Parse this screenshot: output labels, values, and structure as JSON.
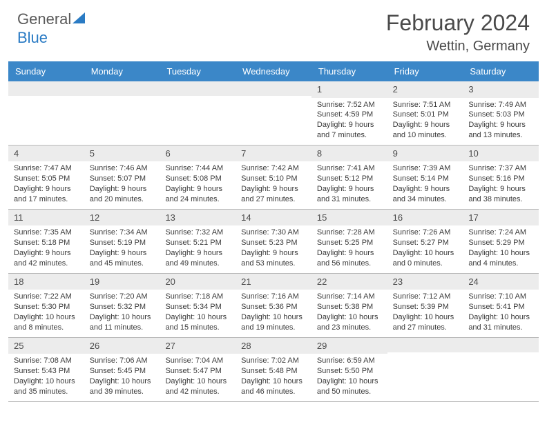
{
  "logo": {
    "text_general": "General",
    "text_blue": "Blue"
  },
  "header": {
    "month_year": "February 2024",
    "location": "Wettin, Germany"
  },
  "weekdays": [
    "Sunday",
    "Monday",
    "Tuesday",
    "Wednesday",
    "Thursday",
    "Friday",
    "Saturday"
  ],
  "style": {
    "header_row_bg": "#3b87c8",
    "header_row_text": "#ffffff",
    "day_number_bg": "#ececec",
    "border_color": "#b8b8b8",
    "text_color": "#3a3a3a",
    "title_color": "#4a4a4a",
    "weekday_fontsize": 13,
    "cell_fontsize": 11,
    "title_fontsize": 32,
    "location_fontsize": 20
  },
  "weeks": [
    [
      {
        "n": "",
        "sunrise": "",
        "sunset": "",
        "daylight1": "",
        "daylight2": ""
      },
      {
        "n": "",
        "sunrise": "",
        "sunset": "",
        "daylight1": "",
        "daylight2": ""
      },
      {
        "n": "",
        "sunrise": "",
        "sunset": "",
        "daylight1": "",
        "daylight2": ""
      },
      {
        "n": "",
        "sunrise": "",
        "sunset": "",
        "daylight1": "",
        "daylight2": ""
      },
      {
        "n": "1",
        "sunrise": "Sunrise: 7:52 AM",
        "sunset": "Sunset: 4:59 PM",
        "daylight1": "Daylight: 9 hours",
        "daylight2": "and 7 minutes."
      },
      {
        "n": "2",
        "sunrise": "Sunrise: 7:51 AM",
        "sunset": "Sunset: 5:01 PM",
        "daylight1": "Daylight: 9 hours",
        "daylight2": "and 10 minutes."
      },
      {
        "n": "3",
        "sunrise": "Sunrise: 7:49 AM",
        "sunset": "Sunset: 5:03 PM",
        "daylight1": "Daylight: 9 hours",
        "daylight2": "and 13 minutes."
      }
    ],
    [
      {
        "n": "4",
        "sunrise": "Sunrise: 7:47 AM",
        "sunset": "Sunset: 5:05 PM",
        "daylight1": "Daylight: 9 hours",
        "daylight2": "and 17 minutes."
      },
      {
        "n": "5",
        "sunrise": "Sunrise: 7:46 AM",
        "sunset": "Sunset: 5:07 PM",
        "daylight1": "Daylight: 9 hours",
        "daylight2": "and 20 minutes."
      },
      {
        "n": "6",
        "sunrise": "Sunrise: 7:44 AM",
        "sunset": "Sunset: 5:08 PM",
        "daylight1": "Daylight: 9 hours",
        "daylight2": "and 24 minutes."
      },
      {
        "n": "7",
        "sunrise": "Sunrise: 7:42 AM",
        "sunset": "Sunset: 5:10 PM",
        "daylight1": "Daylight: 9 hours",
        "daylight2": "and 27 minutes."
      },
      {
        "n": "8",
        "sunrise": "Sunrise: 7:41 AM",
        "sunset": "Sunset: 5:12 PM",
        "daylight1": "Daylight: 9 hours",
        "daylight2": "and 31 minutes."
      },
      {
        "n": "9",
        "sunrise": "Sunrise: 7:39 AM",
        "sunset": "Sunset: 5:14 PM",
        "daylight1": "Daylight: 9 hours",
        "daylight2": "and 34 minutes."
      },
      {
        "n": "10",
        "sunrise": "Sunrise: 7:37 AM",
        "sunset": "Sunset: 5:16 PM",
        "daylight1": "Daylight: 9 hours",
        "daylight2": "and 38 minutes."
      }
    ],
    [
      {
        "n": "11",
        "sunrise": "Sunrise: 7:35 AM",
        "sunset": "Sunset: 5:18 PM",
        "daylight1": "Daylight: 9 hours",
        "daylight2": "and 42 minutes."
      },
      {
        "n": "12",
        "sunrise": "Sunrise: 7:34 AM",
        "sunset": "Sunset: 5:19 PM",
        "daylight1": "Daylight: 9 hours",
        "daylight2": "and 45 minutes."
      },
      {
        "n": "13",
        "sunrise": "Sunrise: 7:32 AM",
        "sunset": "Sunset: 5:21 PM",
        "daylight1": "Daylight: 9 hours",
        "daylight2": "and 49 minutes."
      },
      {
        "n": "14",
        "sunrise": "Sunrise: 7:30 AM",
        "sunset": "Sunset: 5:23 PM",
        "daylight1": "Daylight: 9 hours",
        "daylight2": "and 53 minutes."
      },
      {
        "n": "15",
        "sunrise": "Sunrise: 7:28 AM",
        "sunset": "Sunset: 5:25 PM",
        "daylight1": "Daylight: 9 hours",
        "daylight2": "and 56 minutes."
      },
      {
        "n": "16",
        "sunrise": "Sunrise: 7:26 AM",
        "sunset": "Sunset: 5:27 PM",
        "daylight1": "Daylight: 10 hours",
        "daylight2": "and 0 minutes."
      },
      {
        "n": "17",
        "sunrise": "Sunrise: 7:24 AM",
        "sunset": "Sunset: 5:29 PM",
        "daylight1": "Daylight: 10 hours",
        "daylight2": "and 4 minutes."
      }
    ],
    [
      {
        "n": "18",
        "sunrise": "Sunrise: 7:22 AM",
        "sunset": "Sunset: 5:30 PM",
        "daylight1": "Daylight: 10 hours",
        "daylight2": "and 8 minutes."
      },
      {
        "n": "19",
        "sunrise": "Sunrise: 7:20 AM",
        "sunset": "Sunset: 5:32 PM",
        "daylight1": "Daylight: 10 hours",
        "daylight2": "and 11 minutes."
      },
      {
        "n": "20",
        "sunrise": "Sunrise: 7:18 AM",
        "sunset": "Sunset: 5:34 PM",
        "daylight1": "Daylight: 10 hours",
        "daylight2": "and 15 minutes."
      },
      {
        "n": "21",
        "sunrise": "Sunrise: 7:16 AM",
        "sunset": "Sunset: 5:36 PM",
        "daylight1": "Daylight: 10 hours",
        "daylight2": "and 19 minutes."
      },
      {
        "n": "22",
        "sunrise": "Sunrise: 7:14 AM",
        "sunset": "Sunset: 5:38 PM",
        "daylight1": "Daylight: 10 hours",
        "daylight2": "and 23 minutes."
      },
      {
        "n": "23",
        "sunrise": "Sunrise: 7:12 AM",
        "sunset": "Sunset: 5:39 PM",
        "daylight1": "Daylight: 10 hours",
        "daylight2": "and 27 minutes."
      },
      {
        "n": "24",
        "sunrise": "Sunrise: 7:10 AM",
        "sunset": "Sunset: 5:41 PM",
        "daylight1": "Daylight: 10 hours",
        "daylight2": "and 31 minutes."
      }
    ],
    [
      {
        "n": "25",
        "sunrise": "Sunrise: 7:08 AM",
        "sunset": "Sunset: 5:43 PM",
        "daylight1": "Daylight: 10 hours",
        "daylight2": "and 35 minutes."
      },
      {
        "n": "26",
        "sunrise": "Sunrise: 7:06 AM",
        "sunset": "Sunset: 5:45 PM",
        "daylight1": "Daylight: 10 hours",
        "daylight2": "and 39 minutes."
      },
      {
        "n": "27",
        "sunrise": "Sunrise: 7:04 AM",
        "sunset": "Sunset: 5:47 PM",
        "daylight1": "Daylight: 10 hours",
        "daylight2": "and 42 minutes."
      },
      {
        "n": "28",
        "sunrise": "Sunrise: 7:02 AM",
        "sunset": "Sunset: 5:48 PM",
        "daylight1": "Daylight: 10 hours",
        "daylight2": "and 46 minutes."
      },
      {
        "n": "29",
        "sunrise": "Sunrise: 6:59 AM",
        "sunset": "Sunset: 5:50 PM",
        "daylight1": "Daylight: 10 hours",
        "daylight2": "and 50 minutes."
      },
      {
        "n": "",
        "sunrise": "",
        "sunset": "",
        "daylight1": "",
        "daylight2": ""
      },
      {
        "n": "",
        "sunrise": "",
        "sunset": "",
        "daylight1": "",
        "daylight2": ""
      }
    ]
  ]
}
